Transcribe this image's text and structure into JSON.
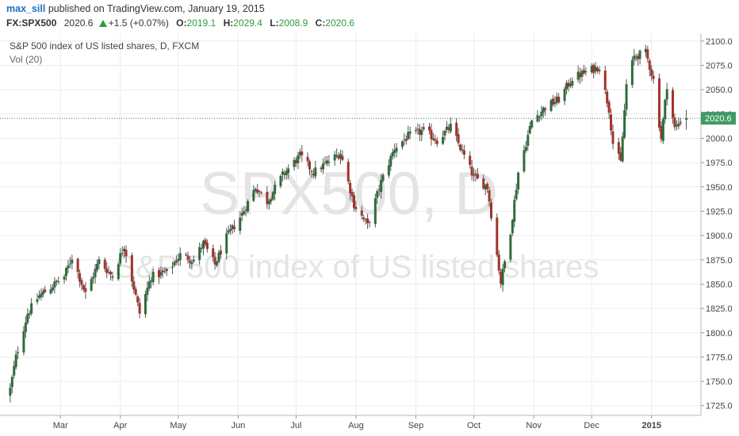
{
  "header": {
    "author": "max_sill",
    "published_text": "published on TradingView.com, January 19, 2015"
  },
  "quote": {
    "symbol": "FX:SPX500",
    "last": "2020.6",
    "change": "+1.5 (+0.07%)",
    "open_label": "O:",
    "open": "2019.1",
    "high_label": "H:",
    "high": "2029.4",
    "low_label": "L:",
    "low": "2008.9",
    "close_label": "C:",
    "close": "2020.6"
  },
  "legend": {
    "title": "S&P 500 index of US listed shares, D, FXCM",
    "volume": "Vol (20)"
  },
  "watermark": {
    "line1": "SPX500, D",
    "line2": "S&P 500 index of US listed shares"
  },
  "colors": {
    "up": "#2f6b3c",
    "down": "#a3322b",
    "wick": "#555555",
    "price_line": "#2e8b57",
    "price_label_bg": "#3f9a64",
    "grid": "#ececec",
    "watermark": "#e4e4e4"
  },
  "chart_data": {
    "type": "candlestick",
    "symbol": "FX:SPX500",
    "interval": "D",
    "ylim": [
      1715,
      2108
    ],
    "y_ticks": [
      1725,
      1750,
      1775,
      1800,
      1825,
      1850,
      1875,
      1900,
      1925,
      1950,
      1975,
      2000,
      2025,
      2050,
      2075,
      2100
    ],
    "x_ticks": [
      "Mar",
      "Apr",
      "May",
      "Jun",
      "Jul",
      "Aug",
      "Sep",
      "Oct",
      "Nov",
      "Dec",
      "2015"
    ],
    "last_price": 2020.6,
    "last_price_label": "2020.6",
    "grid": true,
    "waypoints": [
      {
        "date": "2014-02-03",
        "close": 1742
      },
      {
        "date": "2014-02-06",
        "close": 1775
      },
      {
        "date": "2014-02-12",
        "close": 1820
      },
      {
        "date": "2014-02-18",
        "close": 1838
      },
      {
        "date": "2014-02-24",
        "close": 1847
      },
      {
        "date": "2014-03-03",
        "close": 1858
      },
      {
        "date": "2014-03-07",
        "close": 1878
      },
      {
        "date": "2014-03-14",
        "close": 1840
      },
      {
        "date": "2014-03-21",
        "close": 1874
      },
      {
        "date": "2014-03-28",
        "close": 1858
      },
      {
        "date": "2014-04-03",
        "close": 1890
      },
      {
        "date": "2014-04-11",
        "close": 1820
      },
      {
        "date": "2014-04-17",
        "close": 1858
      },
      {
        "date": "2014-04-25",
        "close": 1862
      },
      {
        "date": "2014-05-02",
        "close": 1880
      },
      {
        "date": "2014-05-09",
        "close": 1875
      },
      {
        "date": "2014-05-14",
        "close": 1892
      },
      {
        "date": "2014-05-20",
        "close": 1870
      },
      {
        "date": "2014-05-26",
        "close": 1898
      },
      {
        "date": "2014-06-03",
        "close": 1922
      },
      {
        "date": "2014-06-10",
        "close": 1950
      },
      {
        "date": "2014-06-16",
        "close": 1935
      },
      {
        "date": "2014-06-24",
        "close": 1962
      },
      {
        "date": "2014-07-03",
        "close": 1982
      },
      {
        "date": "2014-07-10",
        "close": 1965
      },
      {
        "date": "2014-07-17",
        "close": 1975
      },
      {
        "date": "2014-07-24",
        "close": 1985
      },
      {
        "date": "2014-07-31",
        "close": 1932
      },
      {
        "date": "2014-08-07",
        "close": 1910
      },
      {
        "date": "2014-08-14",
        "close": 1955
      },
      {
        "date": "2014-08-21",
        "close": 1990
      },
      {
        "date": "2014-08-28",
        "close": 2002
      },
      {
        "date": "2014-09-05",
        "close": 2008
      },
      {
        "date": "2014-09-12",
        "close": 1998
      },
      {
        "date": "2014-09-19",
        "close": 2012
      },
      {
        "date": "2014-09-25",
        "close": 1986
      },
      {
        "date": "2014-10-01",
        "close": 1960
      },
      {
        "date": "2014-10-08",
        "close": 1950
      },
      {
        "date": "2014-10-13",
        "close": 1880
      },
      {
        "date": "2014-10-15",
        "close": 1852
      },
      {
        "date": "2014-10-20",
        "close": 1905
      },
      {
        "date": "2014-10-24",
        "close": 1965
      },
      {
        "date": "2014-10-31",
        "close": 2018
      },
      {
        "date": "2014-11-07",
        "close": 2032
      },
      {
        "date": "2014-11-14",
        "close": 2040
      },
      {
        "date": "2014-11-21",
        "close": 2062
      },
      {
        "date": "2014-11-28",
        "close": 2068
      },
      {
        "date": "2014-12-05",
        "close": 2074
      },
      {
        "date": "2014-12-10",
        "close": 2030
      },
      {
        "date": "2014-12-12",
        "close": 1995
      },
      {
        "date": "2014-12-16",
        "close": 1975
      },
      {
        "date": "2014-12-19",
        "close": 2055
      },
      {
        "date": "2014-12-23",
        "close": 2084
      },
      {
        "date": "2014-12-29",
        "close": 2088
      },
      {
        "date": "2015-01-02",
        "close": 2060
      },
      {
        "date": "2015-01-06",
        "close": 2000
      },
      {
        "date": "2015-01-09",
        "close": 2055
      },
      {
        "date": "2015-01-13",
        "close": 2010
      },
      {
        "date": "2015-01-16",
        "close": 2018
      },
      {
        "date": "2015-01-19",
        "close": 2020.6
      }
    ]
  }
}
